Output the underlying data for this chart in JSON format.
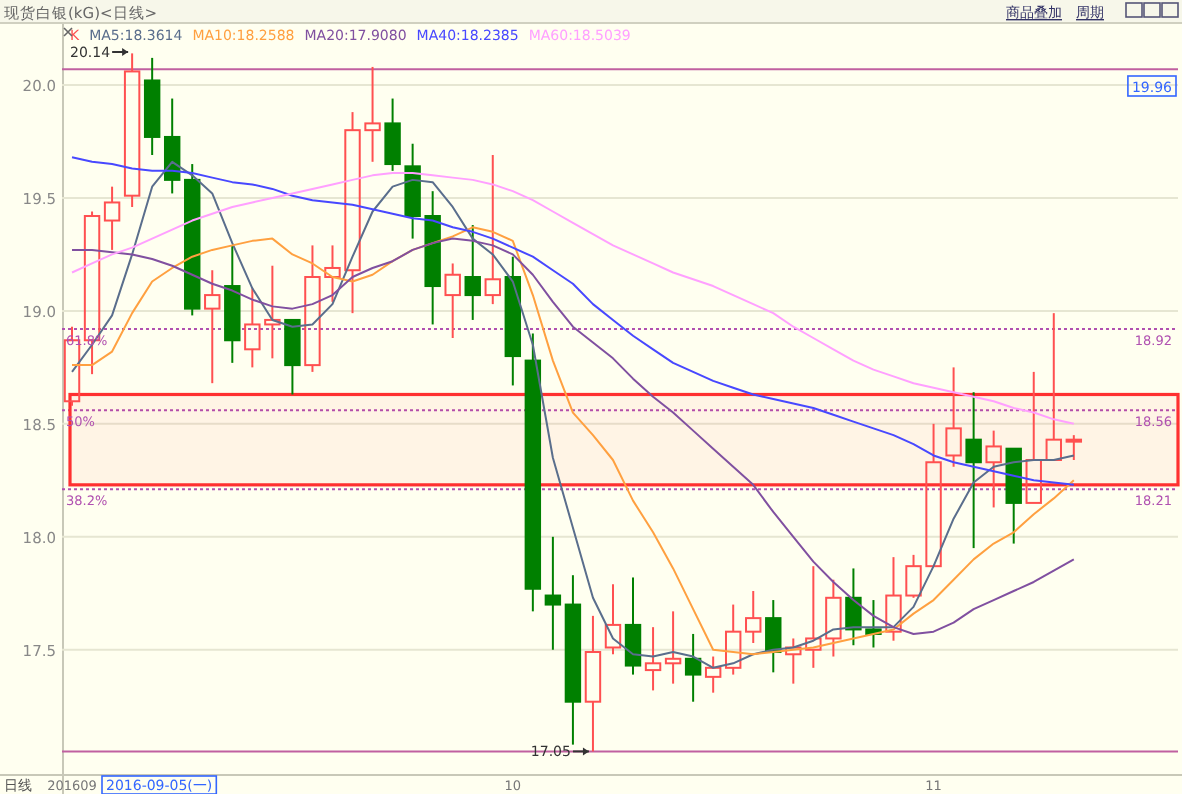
{
  "chart_data": {
    "type": "candlestick",
    "title": "现货白银(kG)<日线>",
    "categories": [
      "201609",
      null,
      null,
      null,
      null,
      null,
      null,
      null,
      null,
      null,
      null,
      null,
      null,
      null,
      null,
      null,
      null,
      null,
      null,
      null,
      null,
      null,
      "10",
      null,
      null,
      null,
      null,
      null,
      null,
      null,
      null,
      null,
      null,
      null,
      null,
      null,
      null,
      null,
      null,
      null,
      null,
      null,
      null,
      "11",
      null,
      null,
      null,
      null,
      null,
      null,
      null
    ],
    "series": [
      {
        "name": "K",
        "ohlc": [
          [
            18.6,
            18.93,
            18.58,
            18.87
          ],
          [
            18.87,
            19.44,
            18.72,
            19.42
          ],
          [
            19.4,
            19.55,
            19.27,
            19.48
          ],
          [
            19.51,
            20.14,
            19.46,
            20.06
          ],
          [
            20.02,
            20.12,
            19.69,
            19.77
          ],
          [
            19.77,
            19.94,
            19.52,
            19.58
          ],
          [
            19.58,
            19.65,
            18.98,
            19.01
          ],
          [
            19.01,
            19.18,
            18.68,
            19.07
          ],
          [
            19.11,
            19.29,
            18.77,
            18.87
          ],
          [
            18.83,
            19.1,
            18.75,
            18.94
          ],
          [
            18.94,
            19.2,
            18.79,
            18.96
          ],
          [
            18.96,
            18.96,
            18.63,
            18.76
          ],
          [
            18.76,
            19.29,
            18.73,
            19.15
          ],
          [
            19.15,
            19.29,
            19.04,
            19.19
          ],
          [
            19.18,
            19.88,
            18.99,
            19.8
          ],
          [
            19.8,
            20.08,
            19.66,
            19.83
          ],
          [
            19.83,
            19.94,
            19.62,
            19.65
          ],
          [
            19.64,
            19.74,
            19.32,
            19.42
          ],
          [
            19.42,
            19.53,
            18.94,
            19.11
          ],
          [
            19.07,
            19.21,
            18.88,
            19.16
          ],
          [
            19.15,
            19.38,
            18.96,
            19.07
          ],
          [
            19.07,
            19.69,
            19.03,
            19.14
          ],
          [
            19.15,
            19.24,
            18.67,
            18.8
          ],
          [
            18.78,
            18.9,
            17.67,
            17.77
          ],
          [
            17.74,
            18.0,
            17.5,
            17.7
          ],
          [
            17.7,
            17.83,
            17.08,
            17.27
          ],
          [
            17.27,
            17.65,
            17.05,
            17.49
          ],
          [
            17.51,
            17.79,
            17.48,
            17.61
          ],
          [
            17.61,
            17.82,
            17.39,
            17.43
          ],
          [
            17.41,
            17.6,
            17.32,
            17.44
          ],
          [
            17.44,
            17.67,
            17.35,
            17.46
          ],
          [
            17.46,
            17.57,
            17.27,
            17.39
          ],
          [
            17.38,
            17.47,
            17.31,
            17.42
          ],
          [
            17.42,
            17.7,
            17.39,
            17.58
          ],
          [
            17.58,
            17.76,
            17.53,
            17.64
          ],
          [
            17.64,
            17.72,
            17.4,
            17.49
          ],
          [
            17.48,
            17.55,
            17.35,
            17.51
          ],
          [
            17.5,
            17.87,
            17.42,
            17.55
          ],
          [
            17.55,
            17.81,
            17.47,
            17.73
          ],
          [
            17.73,
            17.86,
            17.52,
            17.59
          ],
          [
            17.59,
            17.72,
            17.51,
            17.57
          ],
          [
            17.58,
            17.91,
            17.54,
            17.74
          ],
          [
            17.74,
            17.92,
            17.73,
            17.87
          ],
          [
            17.87,
            18.5,
            17.87,
            18.33
          ],
          [
            18.36,
            18.75,
            18.31,
            18.48
          ],
          [
            18.43,
            18.64,
            17.95,
            18.33
          ],
          [
            18.33,
            18.47,
            18.13,
            18.4
          ],
          [
            18.39,
            18.39,
            17.97,
            18.15
          ],
          [
            18.15,
            18.73,
            18.15,
            18.34
          ],
          [
            18.34,
            18.99,
            18.34,
            18.43
          ],
          [
            18.43,
            18.45,
            18.34,
            18.43
          ]
        ],
        "colors": [
          "#ff5050",
          "#ff5050",
          "#ff5050",
          "#ff5050",
          "#008000",
          "#008000",
          "#008000",
          "#ff5050",
          "#008000",
          "#ff5050",
          "#ff5050",
          "#008000",
          "#ff5050",
          "#ff5050",
          "#ff5050",
          "#ff5050",
          "#008000",
          "#008000",
          "#008000",
          "#ff5050",
          "#008000",
          "#ff5050",
          "#008000",
          "#008000",
          "#008000",
          "#008000",
          "#ff5050",
          "#ff5050",
          "#008000",
          "#ff5050",
          "#ff5050",
          "#008000",
          "#ff5050",
          "#ff5050",
          "#ff5050",
          "#008000",
          "#ff5050",
          "#ff5050",
          "#ff5050",
          "#008000",
          "#008000",
          "#ff5050",
          "#ff5050",
          "#ff5050",
          "#ff5050",
          "#008000",
          "#ff5050",
          "#008000",
          "#ff5050",
          "#ff5050",
          "#ff5050"
        ]
      },
      {
        "type": "line",
        "name": "MA5:18.3614",
        "color": "#5a6e8c",
        "values": [
          18.73,
          18.85,
          18.98,
          19.25,
          19.55,
          19.66,
          19.6,
          19.52,
          19.3,
          19.1,
          18.96,
          18.93,
          18.94,
          19.03,
          19.24,
          19.44,
          19.55,
          19.58,
          19.57,
          19.46,
          19.32,
          19.25,
          19.13,
          18.85,
          18.35,
          18.04,
          17.73,
          17.55,
          17.48,
          17.47,
          17.49,
          17.47,
          17.42,
          17.44,
          17.48,
          17.5,
          17.51,
          17.54,
          17.59,
          17.6,
          17.6,
          17.6,
          17.69,
          17.87,
          18.08,
          18.24,
          18.31,
          18.33,
          18.34,
          18.34,
          18.36
        ]
      },
      {
        "type": "line",
        "name": "MA10:18.2588",
        "color": "#ffa040",
        "values": [
          18.76,
          18.76,
          18.82,
          18.99,
          19.13,
          19.19,
          19.24,
          19.27,
          19.29,
          19.31,
          19.32,
          19.25,
          19.21,
          19.15,
          19.13,
          19.16,
          19.22,
          19.27,
          19.3,
          19.33,
          19.37,
          19.35,
          19.31,
          19.07,
          18.78,
          18.55,
          18.45,
          18.34,
          18.16,
          18.02,
          17.86,
          17.68,
          17.5,
          17.49,
          17.48,
          17.49,
          17.5,
          17.51,
          17.53,
          17.55,
          17.57,
          17.59,
          17.66,
          17.72,
          17.81,
          17.9,
          17.97,
          18.02,
          18.1,
          18.17,
          18.25
        ]
      },
      {
        "type": "line",
        "name": "MA20:17.9080",
        "color": "#8050a0",
        "values": [
          19.27,
          19.27,
          19.26,
          19.25,
          19.23,
          19.2,
          19.16,
          19.12,
          19.09,
          19.05,
          19.02,
          19.01,
          19.03,
          19.07,
          19.15,
          19.19,
          19.22,
          19.27,
          19.3,
          19.32,
          19.31,
          19.29,
          19.25,
          19.16,
          19.04,
          18.93,
          18.86,
          18.79,
          18.7,
          18.62,
          18.55,
          18.47,
          18.39,
          18.31,
          18.23,
          18.11,
          18.0,
          17.89,
          17.8,
          17.72,
          17.65,
          17.6,
          17.57,
          17.58,
          17.62,
          17.68,
          17.72,
          17.76,
          17.8,
          17.85,
          17.9
        ]
      },
      {
        "type": "line",
        "name": "MA40:18.2385",
        "color": "#4848ff",
        "values": [
          19.68,
          19.66,
          19.65,
          19.63,
          19.62,
          19.62,
          19.61,
          19.59,
          19.57,
          19.56,
          19.54,
          19.51,
          19.49,
          19.48,
          19.47,
          19.45,
          19.43,
          19.41,
          19.4,
          19.37,
          19.35,
          19.32,
          19.28,
          19.24,
          19.18,
          19.12,
          19.03,
          18.96,
          18.89,
          18.83,
          18.77,
          18.73,
          18.69,
          18.66,
          18.63,
          18.61,
          18.59,
          18.57,
          18.54,
          18.51,
          18.48,
          18.45,
          18.41,
          18.36,
          18.33,
          18.31,
          18.29,
          18.27,
          18.25,
          18.24,
          18.23
        ]
      },
      {
        "type": "line",
        "name": "MA60:18.5039",
        "color": "#ffa0ff",
        "values": [
          19.17,
          19.21,
          19.25,
          19.28,
          19.32,
          19.36,
          19.4,
          19.43,
          19.46,
          19.48,
          19.5,
          19.52,
          19.54,
          19.56,
          19.58,
          19.6,
          19.61,
          19.61,
          19.6,
          19.59,
          19.58,
          19.56,
          19.53,
          19.49,
          19.44,
          19.39,
          19.34,
          19.29,
          19.25,
          19.21,
          19.17,
          19.14,
          19.11,
          19.07,
          19.03,
          18.99,
          18.93,
          18.88,
          18.83,
          18.78,
          18.74,
          18.71,
          18.68,
          18.66,
          18.64,
          18.62,
          18.6,
          18.57,
          18.55,
          18.52,
          18.5
        ]
      }
    ],
    "ylim": [
      16.95,
      20.27
    ],
    "yticks": [
      {
        "value": 17.5,
        "label": "17.5"
      },
      {
        "value": 18,
        "label": "18.0"
      },
      {
        "value": 18.5,
        "label": "18.5"
      },
      {
        "value": 19,
        "label": "19.0"
      },
      {
        "value": 19.5,
        "label": "19.5"
      },
      {
        "value": 20,
        "label": "20.0"
      }
    ],
    "grid": "y",
    "legend": "top left",
    "ref_lines": [
      {
        "axis": "y",
        "value": 20.07,
        "color": "#c060a0",
        "line_style": "solid"
      },
      {
        "axis": "y",
        "value": 18.92,
        "label": "18.92",
        "color": "#b050b0",
        "line_style": "dotted"
      },
      {
        "axis": "y",
        "value": 18.56,
        "label": "18.56",
        "color": "#b050b0",
        "line_style": "dotted"
      },
      {
        "axis": "y",
        "value": 18.21,
        "label": "18.21",
        "color": "#b050b0",
        "line_style": "dotted"
      },
      {
        "axis": "y",
        "value": 17.05,
        "color": "#c060a0",
        "line_style": "solid"
      }
    ],
    "bands": [
      {
        "axis": "y",
        "from": 18.23,
        "to": 18.63,
        "color": "#ff3030"
      }
    ],
    "annotations": [
      "20.14",
      {
        "text": "17.05",
        "y": 17.05
      },
      {
        "text": "61.8%",
        "y": 18.92
      },
      {
        "text": "50%",
        "y": 18.56
      },
      {
        "text": "38.2%",
        "y": 18.21
      },
      "商品叠加",
      "周期",
      "日线",
      "2016-09-05(一)",
      "19.96"
    ]
  }
}
